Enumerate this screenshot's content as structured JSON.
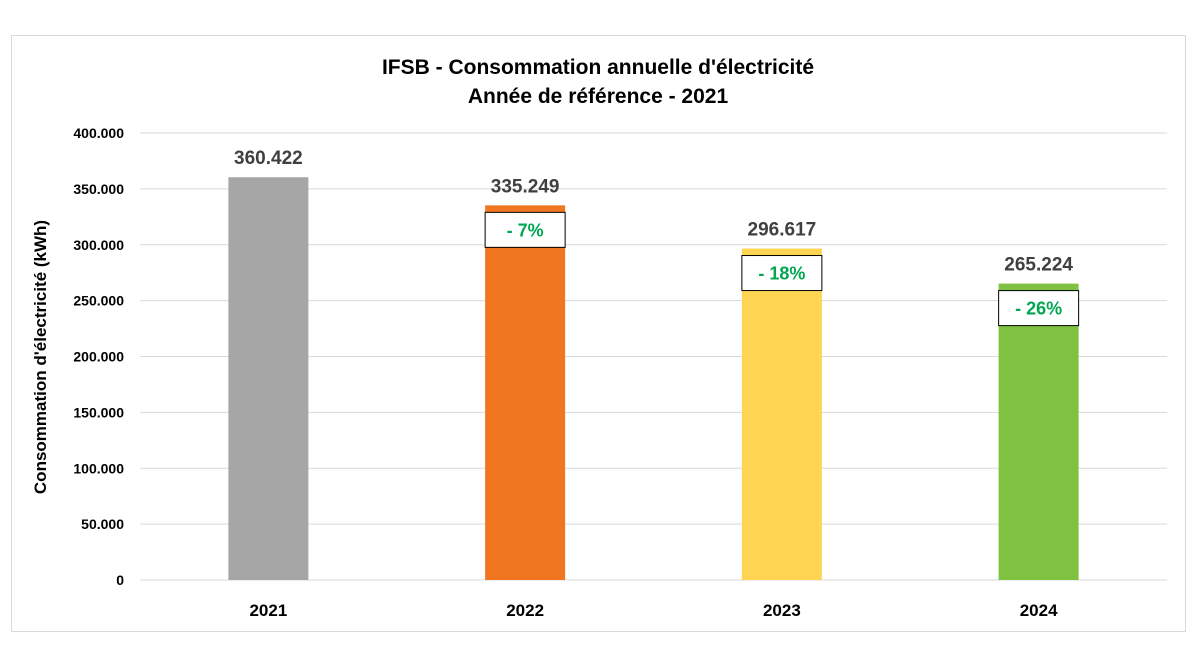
{
  "chart_data": {
    "type": "bar",
    "title": "IFSB - Consommation annuelle d'électricité",
    "subtitle": "Année de référence - 2021",
    "xlabel": "",
    "ylabel": "Consommation d'électricité (kWh)",
    "ylim": [
      0,
      400000
    ],
    "yticks": [
      {
        "value": 0,
        "label": "0"
      },
      {
        "value": 50000,
        "label": "50.000"
      },
      {
        "value": 100000,
        "label": "100.000"
      },
      {
        "value": 150000,
        "label": "150.000"
      },
      {
        "value": 200000,
        "label": "200.000"
      },
      {
        "value": 250000,
        "label": "250.000"
      },
      {
        "value": 300000,
        "label": "300.000"
      },
      {
        "value": 350000,
        "label": "350.000"
      },
      {
        "value": 400000,
        "label": "400.000"
      }
    ],
    "categories": [
      "2021",
      "2022",
      "2023",
      "2024"
    ],
    "values": [
      360422,
      335249,
      296617,
      265224
    ],
    "value_labels": [
      "360.422",
      "335.249",
      "296.617",
      "265.224"
    ],
    "change_labels": [
      "",
      "- 7%",
      "- 18%",
      "- 26%"
    ],
    "bar_colors": [
      "#a6a6a6",
      "#f07622",
      "#ffd452",
      "#7fc241"
    ],
    "change_color": "#00a651",
    "grid": true,
    "legend": "none"
  }
}
